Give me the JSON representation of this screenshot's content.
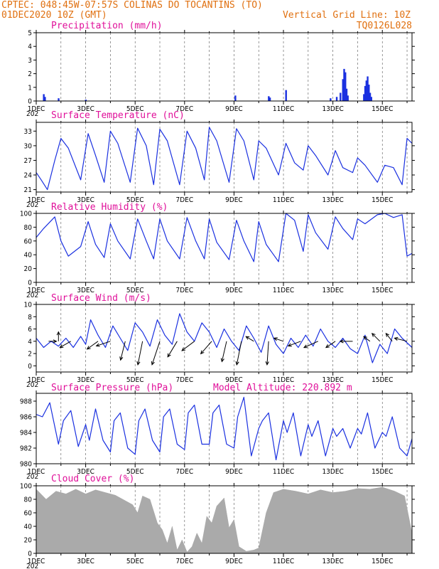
{
  "header": {
    "line1_left": "CPTEC:  048:45W-07:57S  COLINAS DO TOCANTINS (TO)",
    "line2_left": "01DEC2020 10Z (GMT)",
    "line2_right": "Vertical Grid Line: 10Z",
    "line3_right": "TQ0126L028",
    "model_altitude": "Model Altitude: 220.892 m"
  },
  "colors": {
    "header": "#e07010",
    "title": "#e0109a",
    "line": "#1a30e0",
    "bar": "#1a30e0",
    "cloud": "#aaaaaa"
  },
  "x_axis": {
    "tick_labels": [
      "1DEC",
      "3DEC",
      "5DEC",
      "7DEC",
      "9DEC",
      "11DEC",
      "13DEC",
      "15DEC"
    ],
    "year_fragment": "202",
    "start_day": 1,
    "end_day": 16.2,
    "tick_days": [
      1,
      3,
      5,
      7,
      9,
      11,
      13,
      15
    ]
  },
  "chart_data": [
    {
      "id": "precip",
      "type": "bar",
      "title": "Precipitation (mm/h)",
      "ylim": [
        0,
        5
      ],
      "yticks": [
        0,
        1,
        2,
        3,
        4,
        5
      ],
      "x": [
        1.3,
        1.35,
        1.9,
        3.0,
        9.05,
        10.4,
        10.45,
        11.1,
        12.9,
        13.15,
        13.3,
        13.4,
        13.45,
        13.5,
        13.55,
        13.6,
        14.25,
        14.3,
        14.35,
        14.4,
        14.45,
        14.5,
        14.55
      ],
      "values": [
        0.5,
        0.3,
        0.2,
        0.1,
        0.4,
        0.35,
        0.25,
        0.8,
        0.2,
        0.3,
        0.6,
        1.6,
        2.35,
        2.1,
        0.9,
        0.4,
        0.5,
        1.1,
        1.5,
        1.8,
        1.2,
        0.6,
        0.3
      ]
    },
    {
      "id": "temp",
      "type": "line",
      "title": "Surface Temperature (nC)",
      "ylim": [
        20.5,
        34.8
      ],
      "yticks": [
        21,
        24,
        27,
        30,
        33
      ],
      "x": [
        1.0,
        1.2,
        1.45,
        1.75,
        2.0,
        2.3,
        2.8,
        3.1,
        3.4,
        3.75,
        4.0,
        4.3,
        4.8,
        5.1,
        5.45,
        5.75,
        6.0,
        6.3,
        6.8,
        7.1,
        7.45,
        7.8,
        8.0,
        8.3,
        8.8,
        9.1,
        9.4,
        9.8,
        10.0,
        10.3,
        10.8,
        11.1,
        11.45,
        11.8,
        12.0,
        12.3,
        12.8,
        13.1,
        13.4,
        13.8,
        14.0,
        14.3,
        14.8,
        15.1,
        15.45,
        15.8,
        16.0,
        16.2
      ],
      "values": [
        24.5,
        23.0,
        21.0,
        27.0,
        31.5,
        29.5,
        23.0,
        32.5,
        28.0,
        22.5,
        33.0,
        30.5,
        22.5,
        33.6,
        30.0,
        22.0,
        33.4,
        31.0,
        22.0,
        33.0,
        29.5,
        23.0,
        33.8,
        31.0,
        22.5,
        33.5,
        31.0,
        23.0,
        31.0,
        29.5,
        24.0,
        30.5,
        26.5,
        25.0,
        30.0,
        28.0,
        24.0,
        29.0,
        25.5,
        24.5,
        27.5,
        26.0,
        22.5,
        26.0,
        25.5,
        22.0,
        31.5,
        30.5
      ]
    },
    {
      "id": "rh",
      "type": "line",
      "title": "Relative Humidity (%)",
      "ylim": [
        0,
        100
      ],
      "yticks": [
        0,
        20,
        40,
        60,
        80,
        100
      ],
      "x": [
        1.0,
        1.3,
        1.75,
        2.0,
        2.3,
        2.8,
        3.1,
        3.4,
        3.75,
        4.0,
        4.3,
        4.8,
        5.1,
        5.45,
        5.75,
        6.0,
        6.3,
        6.8,
        7.1,
        7.45,
        7.8,
        8.0,
        8.3,
        8.8,
        9.1,
        9.4,
        9.8,
        10.0,
        10.3,
        10.8,
        11.1,
        11.45,
        11.8,
        12.0,
        12.3,
        12.8,
        13.1,
        13.4,
        13.8,
        14.0,
        14.3,
        14.8,
        15.1,
        15.45,
        15.8,
        16.0,
        16.2
      ],
      "values": [
        65,
        78,
        95,
        60,
        38,
        52,
        88,
        55,
        36,
        85,
        60,
        34,
        92,
        60,
        34,
        92,
        60,
        34,
        94,
        60,
        34,
        92,
        58,
        33,
        90,
        60,
        30,
        88,
        55,
        30,
        100,
        90,
        45,
        98,
        72,
        48,
        95,
        78,
        62,
        92,
        85,
        98,
        100,
        94,
        98,
        38,
        42
      ]
    },
    {
      "id": "wind",
      "type": "line",
      "title": "Surface Wind (m/s)",
      "ylim": [
        -1,
        10
      ],
      "yticks": [
        0,
        2,
        4,
        6,
        8,
        10
      ],
      "x": [
        1.0,
        1.3,
        1.6,
        1.9,
        2.2,
        2.5,
        2.8,
        3.0,
        3.2,
        3.5,
        3.8,
        4.1,
        4.4,
        4.7,
        5.0,
        5.3,
        5.6,
        5.9,
        6.2,
        6.5,
        6.8,
        7.1,
        7.4,
        7.7,
        8.0,
        8.3,
        8.6,
        8.9,
        9.2,
        9.5,
        9.8,
        10.1,
        10.4,
        10.7,
        11.0,
        11.3,
        11.6,
        11.9,
        12.2,
        12.5,
        12.8,
        13.1,
        13.4,
        13.7,
        14.0,
        14.3,
        14.6,
        14.9,
        15.2,
        15.5,
        15.8,
        16.2
      ],
      "values": [
        4.5,
        3.0,
        4.0,
        3.2,
        4.5,
        3.0,
        4.8,
        3.5,
        7.5,
        5.0,
        3.0,
        6.5,
        4.5,
        2.5,
        7.0,
        5.5,
        3.2,
        7.5,
        5.0,
        3.5,
        8.5,
        5.5,
        4.0,
        7.0,
        5.5,
        3.0,
        6.0,
        4.0,
        2.5,
        6.5,
        4.5,
        2.2,
        6.5,
        3.5,
        2.0,
        4.5,
        3.0,
        5.0,
        3.2,
        6.0,
        4.0,
        3.0,
        4.5,
        2.8,
        2.0,
        5.0,
        0.5,
        3.5,
        2.0,
        6.0,
        4.5,
        3.0
      ],
      "arrows": [
        {
          "day": 1.5,
          "dx": 0.5,
          "dy": 0.0
        },
        {
          "day": 1.9,
          "dx": 0.0,
          "dy": 0.6
        },
        {
          "day": 2.4,
          "dx": -0.7,
          "dy": -0.4
        },
        {
          "day": 3.5,
          "dx": -0.7,
          "dy": -0.5
        },
        {
          "day": 4.0,
          "dx": -0.9,
          "dy": -0.3
        },
        {
          "day": 4.6,
          "dx": -0.3,
          "dy": -1.2
        },
        {
          "day": 5.3,
          "dx": -0.3,
          "dy": -1.5
        },
        {
          "day": 6.0,
          "dx": -0.5,
          "dy": -1.5
        },
        {
          "day": 6.7,
          "dx": -0.6,
          "dy": -1.0
        },
        {
          "day": 7.4,
          "dx": -0.8,
          "dy": -0.6
        },
        {
          "day": 8.1,
          "dx": -0.7,
          "dy": -0.8
        },
        {
          "day": 8.7,
          "dx": -0.3,
          "dy": -1.3
        },
        {
          "day": 9.3,
          "dx": -0.3,
          "dy": -1.5
        },
        {
          "day": 9.8,
          "dx": -0.5,
          "dy": 0.3
        },
        {
          "day": 10.4,
          "dx": -0.1,
          "dy": -1.5
        },
        {
          "day": 11.0,
          "dx": -0.6,
          "dy": 0.2
        },
        {
          "day": 11.7,
          "dx": -0.8,
          "dy": -0.3
        },
        {
          "day": 12.4,
          "dx": -0.9,
          "dy": -0.4
        },
        {
          "day": 13.1,
          "dx": -0.6,
          "dy": -0.4
        },
        {
          "day": 13.8,
          "dx": -0.8,
          "dy": 0.0
        },
        {
          "day": 14.5,
          "dx": -0.4,
          "dy": 0.3
        },
        {
          "day": 14.9,
          "dx": -0.5,
          "dy": 0.5
        },
        {
          "day": 15.4,
          "dx": -0.4,
          "dy": 0.5
        },
        {
          "day": 16.0,
          "dx": -0.8,
          "dy": 0.2
        }
      ]
    },
    {
      "id": "pres",
      "type": "line",
      "title": "Surface Pressure (hPa)",
      "ylim": [
        980,
        989
      ],
      "yticks": [
        980,
        982,
        984,
        986,
        988
      ],
      "x": [
        1.0,
        1.25,
        1.55,
        1.9,
        2.1,
        2.4,
        2.7,
        3.0,
        3.15,
        3.4,
        3.7,
        4.0,
        4.15,
        4.4,
        4.7,
        5.0,
        5.15,
        5.4,
        5.7,
        6.0,
        6.15,
        6.4,
        6.7,
        7.0,
        7.15,
        7.4,
        7.7,
        8.0,
        8.15,
        8.4,
        8.7,
        9.0,
        9.15,
        9.4,
        9.7,
        10.0,
        10.15,
        10.4,
        10.7,
        11.0,
        11.15,
        11.4,
        11.7,
        12.0,
        12.15,
        12.4,
        12.7,
        13.0,
        13.15,
        13.4,
        13.7,
        14.0,
        14.15,
        14.4,
        14.7,
        15.0,
        15.15,
        15.4,
        15.7,
        16.0,
        16.2
      ],
      "values": [
        986.3,
        986.0,
        987.8,
        982.5,
        985.5,
        986.8,
        982.2,
        985.0,
        983.0,
        987.0,
        983.0,
        981.5,
        985.5,
        986.5,
        982.0,
        981.2,
        985.5,
        987.0,
        983.0,
        981.5,
        986.0,
        987.0,
        982.5,
        981.8,
        986.5,
        987.5,
        982.5,
        982.5,
        986.5,
        987.5,
        982.5,
        982.0,
        986.0,
        988.5,
        981.0,
        984.5,
        985.5,
        986.5,
        980.5,
        985.5,
        984.0,
        986.5,
        981.0,
        985.0,
        983.5,
        985.5,
        981.0,
        984.5,
        983.5,
        984.5,
        982.0,
        984.5,
        983.8,
        986.5,
        982.0,
        984.0,
        983.5,
        986.0,
        982.0,
        981.0,
        983.2
      ]
    },
    {
      "id": "cloud",
      "type": "area",
      "title": "Cloud Cover (%)",
      "ylim": [
        0,
        100
      ],
      "yticks": [
        0,
        20,
        40,
        60,
        80,
        100
      ],
      "x": [
        1.0,
        1.4,
        1.8,
        2.2,
        2.6,
        3.0,
        3.4,
        3.8,
        4.2,
        4.6,
        4.9,
        5.1,
        5.3,
        5.6,
        5.9,
        6.1,
        6.3,
        6.5,
        6.7,
        6.9,
        7.1,
        7.3,
        7.5,
        7.7,
        7.9,
        8.1,
        8.3,
        8.6,
        8.8,
        9.0,
        9.2,
        9.5,
        9.8,
        10.0,
        10.3,
        10.6,
        11.0,
        11.5,
        12.0,
        12.5,
        13.0,
        13.5,
        14.0,
        14.5,
        15.0,
        15.5,
        15.9,
        16.2
      ],
      "values": [
        95,
        80,
        92,
        88,
        95,
        88,
        94,
        90,
        86,
        78,
        72,
        60,
        85,
        80,
        45,
        35,
        15,
        40,
        5,
        20,
        2,
        10,
        30,
        15,
        55,
        45,
        70,
        82,
        38,
        50,
        10,
        3,
        5,
        8,
        60,
        90,
        95,
        92,
        88,
        94,
        90,
        92,
        96,
        95,
        98,
        92,
        85,
        30
      ]
    }
  ]
}
